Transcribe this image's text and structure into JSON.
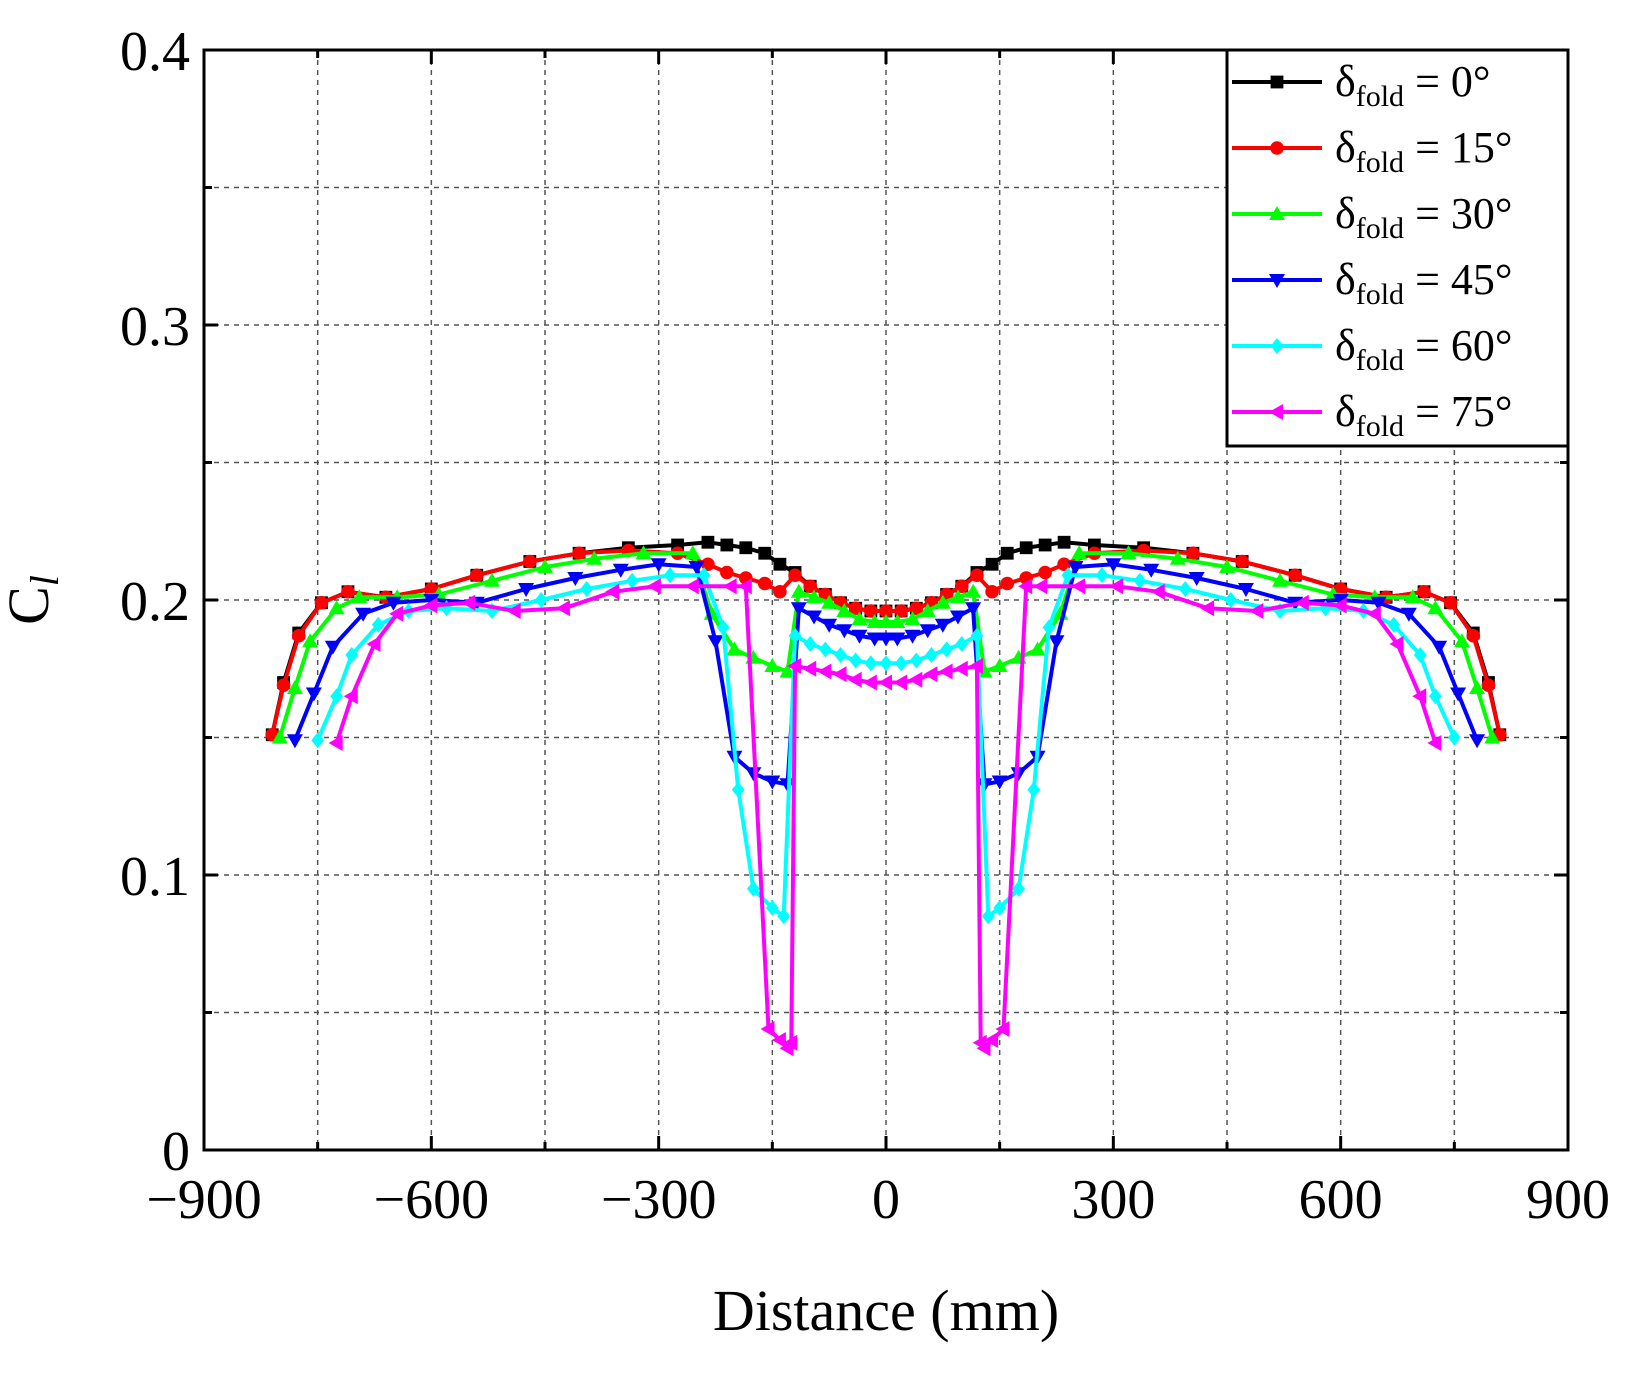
{
  "chart_data": {
    "type": "line",
    "title": "",
    "xlabel": "Distance (mm)",
    "ylabel": {
      "main": "C",
      "sub": "l"
    },
    "xlim": [
      -900,
      900
    ],
    "ylim": [
      0,
      0.4
    ],
    "xticks": [
      -900,
      -600,
      -300,
      0,
      300,
      600,
      900
    ],
    "xtick_labels": [
      "−900",
      "−600",
      "−300",
      "0",
      "300",
      "600",
      "900"
    ],
    "yticks": [
      0,
      0.1,
      0.2,
      0.3,
      0.4
    ],
    "ytick_labels": [
      "0",
      "0.1",
      "0.2",
      "0.3",
      "0.4"
    ],
    "grid": true,
    "legend_position": "top-right",
    "series": [
      {
        "name": "δfold = 0°",
        "label": {
          "prefix": "δ",
          "sub": "fold",
          "suffix": " = 0°"
        },
        "color": "#000000",
        "marker": "square",
        "x": [
          -810,
          -795,
          -775,
          -745,
          -710,
          -660,
          -600,
          -540,
          -470,
          -405,
          -340,
          -275,
          -235,
          -210,
          -185,
          -160,
          -140,
          -120,
          -100,
          -80,
          -60,
          -40,
          -20,
          0,
          20,
          40,
          60,
          80,
          100,
          120,
          140,
          160,
          185,
          210,
          235,
          275,
          340,
          405,
          470,
          540,
          600,
          660,
          710,
          745,
          775,
          795,
          810
        ],
        "y": [
          0.151,
          0.17,
          0.188,
          0.199,
          0.203,
          0.201,
          0.204,
          0.209,
          0.214,
          0.217,
          0.219,
          0.22,
          0.221,
          0.22,
          0.219,
          0.217,
          0.213,
          0.21,
          0.205,
          0.202,
          0.199,
          0.197,
          0.196,
          0.196,
          0.196,
          0.197,
          0.199,
          0.202,
          0.205,
          0.21,
          0.213,
          0.217,
          0.219,
          0.22,
          0.221,
          0.22,
          0.219,
          0.217,
          0.214,
          0.209,
          0.204,
          0.201,
          0.203,
          0.199,
          0.188,
          0.17,
          0.151
        ]
      },
      {
        "name": "δfold = 15°",
        "label": {
          "prefix": "δ",
          "sub": "fold",
          "suffix": " = 15°"
        },
        "color": "#ff0000",
        "marker": "circle",
        "x": [
          -810,
          -795,
          -775,
          -745,
          -710,
          -660,
          -600,
          -540,
          -470,
          -405,
          -340,
          -275,
          -235,
          -210,
          -185,
          -160,
          -140,
          -120,
          -100,
          -80,
          -60,
          -40,
          -20,
          0,
          20,
          40,
          60,
          80,
          100,
          120,
          140,
          160,
          185,
          210,
          235,
          275,
          340,
          405,
          470,
          540,
          600,
          660,
          710,
          745,
          775,
          795,
          810
        ],
        "y": [
          0.151,
          0.169,
          0.187,
          0.199,
          0.203,
          0.201,
          0.204,
          0.209,
          0.214,
          0.217,
          0.218,
          0.217,
          0.213,
          0.21,
          0.208,
          0.206,
          0.203,
          0.209,
          0.205,
          0.202,
          0.199,
          0.197,
          0.196,
          0.196,
          0.196,
          0.197,
          0.199,
          0.202,
          0.205,
          0.209,
          0.203,
          0.206,
          0.208,
          0.21,
          0.213,
          0.217,
          0.218,
          0.217,
          0.214,
          0.209,
          0.204,
          0.201,
          0.203,
          0.199,
          0.187,
          0.169,
          0.151
        ]
      },
      {
        "name": "δfold = 30°",
        "label": {
          "prefix": "δ",
          "sub": "fold",
          "suffix": " = 30°"
        },
        "color": "#00ff00",
        "marker": "triangle-up",
        "x": [
          -800,
          -780,
          -760,
          -725,
          -695,
          -645,
          -590,
          -520,
          -450,
          -385,
          -320,
          -255,
          -230,
          -200,
          -175,
          -150,
          -130,
          -115,
          -95,
          -75,
          -55,
          -35,
          -15,
          0,
          15,
          35,
          55,
          75,
          95,
          115,
          130,
          150,
          175,
          200,
          230,
          255,
          320,
          385,
          450,
          520,
          590,
          645,
          695,
          725,
          760,
          780,
          800
        ],
        "y": [
          0.15,
          0.168,
          0.185,
          0.197,
          0.201,
          0.201,
          0.202,
          0.207,
          0.212,
          0.215,
          0.217,
          0.217,
          0.195,
          0.182,
          0.179,
          0.176,
          0.174,
          0.203,
          0.201,
          0.199,
          0.196,
          0.193,
          0.192,
          0.192,
          0.192,
          0.193,
          0.196,
          0.199,
          0.201,
          0.203,
          0.174,
          0.176,
          0.179,
          0.182,
          0.195,
          0.217,
          0.217,
          0.215,
          0.212,
          0.207,
          0.202,
          0.201,
          0.201,
          0.197,
          0.185,
          0.168,
          0.15
        ]
      },
      {
        "name": "δfold = 45°",
        "label": {
          "prefix": "δ",
          "sub": "fold",
          "suffix": " = 45°"
        },
        "color": "#0000ff",
        "marker": "triangle-down",
        "x": [
          -780,
          -755,
          -730,
          -690,
          -650,
          -600,
          -540,
          -475,
          -410,
          -350,
          -300,
          -250,
          -225,
          -200,
          -175,
          -150,
          -130,
          -115,
          -95,
          -75,
          -55,
          -35,
          -15,
          0,
          15,
          35,
          55,
          75,
          95,
          115,
          130,
          150,
          175,
          200,
          225,
          250,
          300,
          350,
          410,
          475,
          540,
          600,
          650,
          690,
          730,
          755,
          780
        ],
        "y": [
          0.149,
          0.166,
          0.183,
          0.195,
          0.199,
          0.2,
          0.199,
          0.204,
          0.208,
          0.211,
          0.213,
          0.212,
          0.185,
          0.143,
          0.137,
          0.134,
          0.133,
          0.197,
          0.194,
          0.191,
          0.189,
          0.187,
          0.186,
          0.186,
          0.186,
          0.187,
          0.189,
          0.191,
          0.194,
          0.197,
          0.133,
          0.134,
          0.137,
          0.143,
          0.185,
          0.212,
          0.213,
          0.211,
          0.208,
          0.204,
          0.199,
          0.2,
          0.199,
          0.195,
          0.183,
          0.166,
          0.149
        ]
      },
      {
        "name": "δfold = 60°",
        "label": {
          "prefix": "δ",
          "sub": "fold",
          "suffix": " = 60°"
        },
        "color": "#00ffff",
        "marker": "diamond",
        "x": [
          -750,
          -725,
          -705,
          -670,
          -630,
          -580,
          -520,
          -455,
          -395,
          -335,
          -285,
          -240,
          -215,
          -195,
          -175,
          -150,
          -135,
          -120,
          -100,
          -80,
          -60,
          -40,
          -20,
          0,
          20,
          40,
          60,
          80,
          100,
          120,
          135,
          150,
          175,
          195,
          215,
          240,
          285,
          335,
          395,
          455,
          520,
          580,
          630,
          670,
          705,
          725,
          750
        ],
        "y": [
          0.149,
          0.165,
          0.18,
          0.191,
          0.196,
          0.197,
          0.196,
          0.2,
          0.204,
          0.207,
          0.209,
          0.209,
          0.19,
          0.131,
          0.095,
          0.088,
          0.085,
          0.187,
          0.184,
          0.182,
          0.18,
          0.178,
          0.177,
          0.177,
          0.177,
          0.178,
          0.18,
          0.182,
          0.184,
          0.187,
          0.085,
          0.088,
          0.095,
          0.131,
          0.19,
          0.209,
          0.209,
          0.207,
          0.204,
          0.2,
          0.196,
          0.197,
          0.196,
          0.191,
          0.18,
          0.165,
          0.15
        ]
      },
      {
        "name": "δfold = 75°",
        "label": {
          "prefix": "δ",
          "sub": "fold",
          "suffix": " = 75°"
        },
        "color": "#ff00ff",
        "marker": "triangle-left",
        "x": [
          -725,
          -705,
          -675,
          -645,
          -600,
          -550,
          -490,
          -425,
          -360,
          -305,
          -255,
          -205,
          -185,
          -155,
          -140,
          -130,
          -125,
          -120,
          -100,
          -80,
          -60,
          -40,
          -20,
          0,
          20,
          40,
          60,
          80,
          100,
          120,
          125,
          130,
          140,
          155,
          185,
          205,
          255,
          305,
          360,
          425,
          490,
          550,
          600,
          645,
          675,
          705,
          725
        ],
        "y": [
          0.148,
          0.165,
          0.184,
          0.195,
          0.198,
          0.199,
          0.196,
          0.197,
          0.203,
          0.205,
          0.205,
          0.205,
          0.205,
          0.044,
          0.04,
          0.037,
          0.039,
          0.176,
          0.175,
          0.174,
          0.173,
          0.171,
          0.17,
          0.17,
          0.17,
          0.171,
          0.173,
          0.174,
          0.175,
          0.176,
          0.039,
          0.037,
          0.04,
          0.044,
          0.205,
          0.205,
          0.205,
          0.205,
          0.203,
          0.197,
          0.196,
          0.199,
          0.198,
          0.195,
          0.184,
          0.165,
          0.148
        ]
      }
    ]
  }
}
